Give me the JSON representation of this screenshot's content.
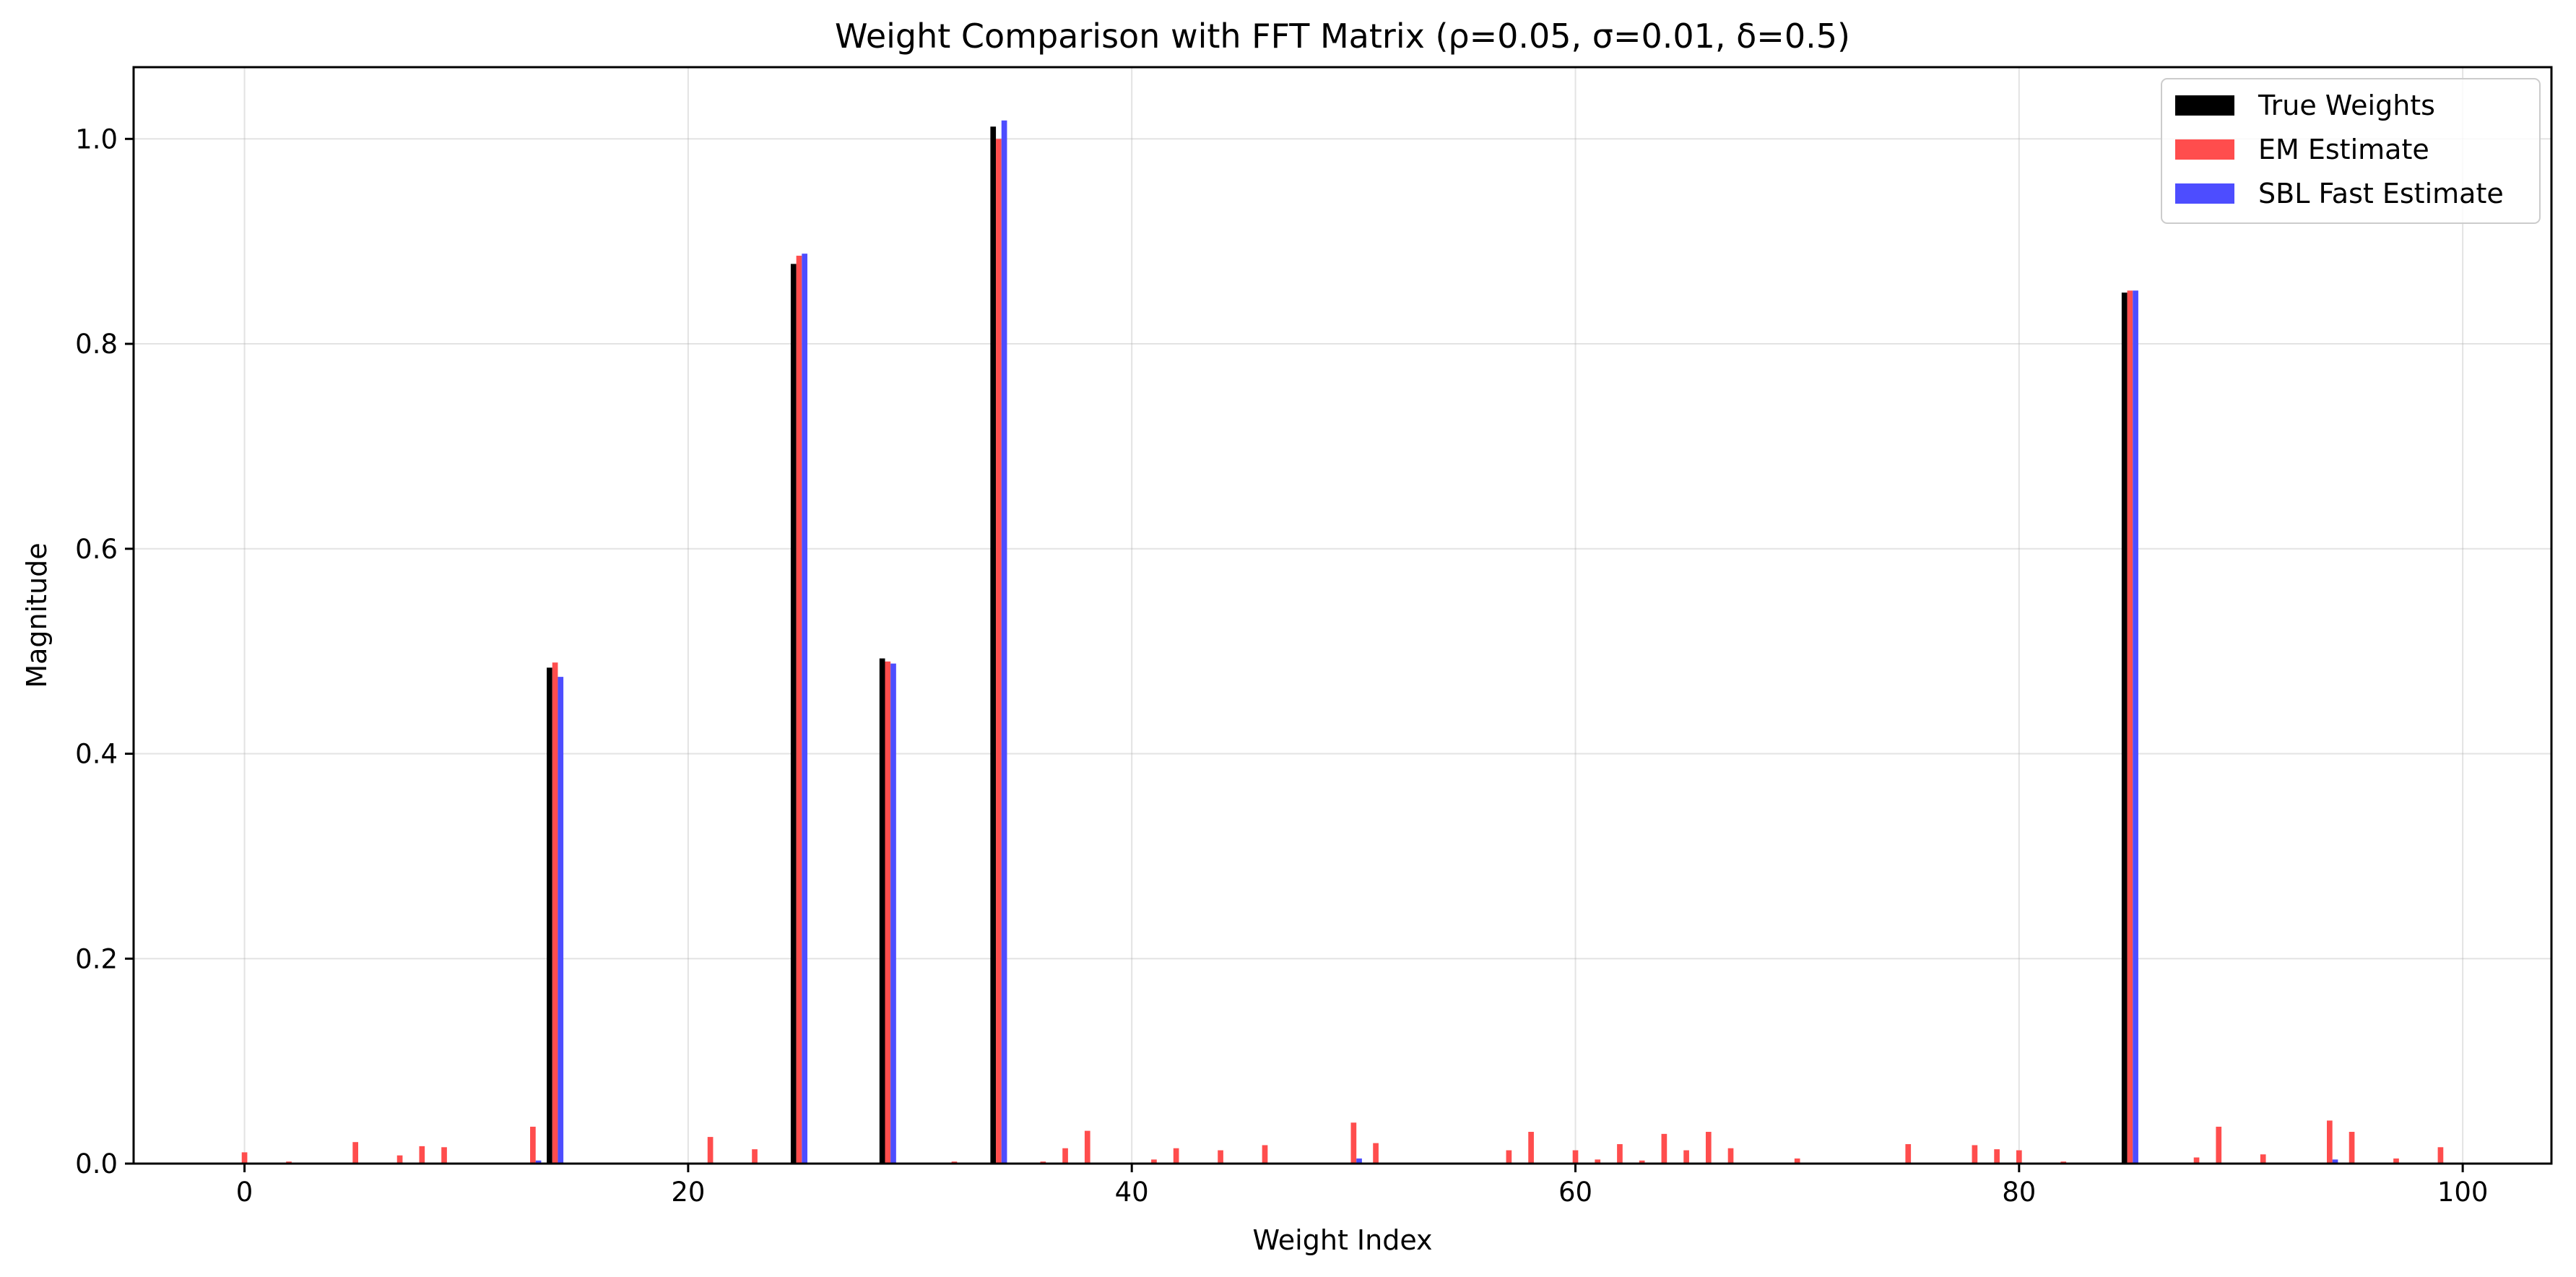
{
  "chart_data": {
    "type": "bar",
    "title": "Weight Comparison with FFT Matrix (ρ=0.05, σ=0.01, δ=0.5)",
    "xlabel": "Weight Index",
    "ylabel": "Magnitude",
    "xlim": [
      -5,
      104
    ],
    "ylim": [
      0,
      1.07
    ],
    "xticks": [
      0,
      20,
      40,
      60,
      80,
      100
    ],
    "yticks": [
      0.0,
      0.2,
      0.4,
      0.6,
      0.8,
      1.0
    ],
    "xtick_labels": [
      "0",
      "20",
      "40",
      "60",
      "80",
      "100"
    ],
    "ytick_labels": [
      "0.0",
      "0.2",
      "0.4",
      "0.6",
      "0.8",
      "1.0"
    ],
    "grid": true,
    "legend_position": "top-right",
    "bar_offset": 0.25,
    "bar_width": 0.25,
    "series": [
      {
        "name": "True Weights",
        "color": "#000000",
        "points": [
          [
            14,
            0.484
          ],
          [
            25,
            0.878
          ],
          [
            29,
            0.493
          ],
          [
            34,
            1.012
          ],
          [
            85,
            0.85
          ]
        ]
      },
      {
        "name": "EM Estimate",
        "color": "#ff4d4d",
        "points": [
          [
            0,
            0.011
          ],
          [
            2,
            0.002
          ],
          [
            5,
            0.021
          ],
          [
            7,
            0.008
          ],
          [
            8,
            0.017
          ],
          [
            9,
            0.016
          ],
          [
            13,
            0.036
          ],
          [
            14,
            0.489
          ],
          [
            21,
            0.026
          ],
          [
            23,
            0.014
          ],
          [
            25,
            0.886
          ],
          [
            29,
            0.49
          ],
          [
            32,
            0.002
          ],
          [
            34,
            1.0
          ],
          [
            36,
            0.002
          ],
          [
            37,
            0.015
          ],
          [
            38,
            0.032
          ],
          [
            41,
            0.004
          ],
          [
            42,
            0.015
          ],
          [
            44,
            0.013
          ],
          [
            46,
            0.018
          ],
          [
            50,
            0.04
          ],
          [
            51,
            0.02
          ],
          [
            57,
            0.013
          ],
          [
            58,
            0.031
          ],
          [
            60,
            0.013
          ],
          [
            61,
            0.004
          ],
          [
            62,
            0.019
          ],
          [
            63,
            0.003
          ],
          [
            64,
            0.029
          ],
          [
            65,
            0.013
          ],
          [
            66,
            0.031
          ],
          [
            67,
            0.015
          ],
          [
            70,
            0.005
          ],
          [
            75,
            0.019
          ],
          [
            78,
            0.018
          ],
          [
            79,
            0.014
          ],
          [
            80,
            0.013
          ],
          [
            82,
            0.002
          ],
          [
            85,
            0.852
          ],
          [
            88,
            0.006
          ],
          [
            89,
            0.036
          ],
          [
            91,
            0.009
          ],
          [
            94,
            0.042
          ],
          [
            95,
            0.031
          ],
          [
            97,
            0.005
          ],
          [
            99,
            0.016
          ]
        ]
      },
      {
        "name": "SBL Fast Estimate",
        "color": "#4d4dff",
        "points": [
          [
            13,
            0.003
          ],
          [
            14,
            0.475
          ],
          [
            25,
            0.888
          ],
          [
            29,
            0.488
          ],
          [
            34,
            1.018
          ],
          [
            50,
            0.005
          ],
          [
            85,
            0.852
          ],
          [
            94,
            0.004
          ]
        ]
      }
    ]
  }
}
